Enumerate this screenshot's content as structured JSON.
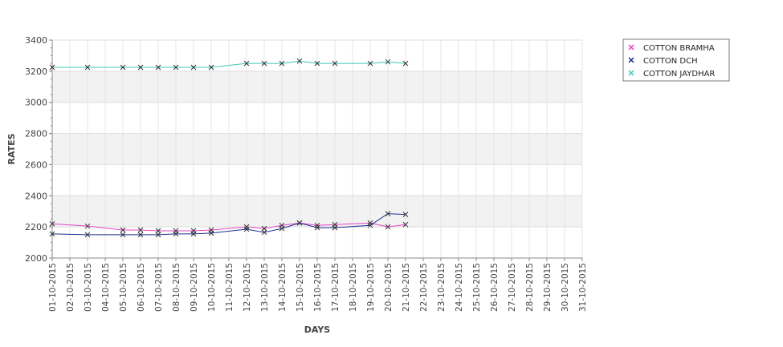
{
  "chart_data": {
    "type": "line",
    "title": "",
    "xlabel": "DAYS",
    "ylabel": "RATES",
    "ylim": [
      2000,
      3400
    ],
    "yticks": [
      "2000",
      "2200",
      "2400",
      "2600",
      "2800",
      "3000",
      "3200",
      "3400"
    ],
    "categories": [
      "01-10-2015",
      "02-10-2015",
      "03-10-2015",
      "04-10-2015",
      "05-10-2015",
      "06-10-2015",
      "07-10-2015",
      "08-10-2015",
      "09-10-2015",
      "10-10-2015",
      "11-10-2015",
      "12-10-2015",
      "13-10-2015",
      "14-10-2015",
      "15-10-2015",
      "16-10-2015",
      "17-10-2015",
      "18-10-2015",
      "19-10-2015",
      "20-10-2015",
      "21-10-2015",
      "22-10-2015",
      "23-10-2015",
      "24-10-2015",
      "25-10-2015",
      "26-10-2015",
      "27-10-2015",
      "28-10-2015",
      "29-10-2015",
      "30-10-2015",
      "31-10-2015"
    ],
    "grid": true,
    "legend_position": "top-right",
    "series": [
      {
        "name": "COTTON BRAMHA",
        "color": "#e642c8",
        "marker": "x",
        "points": [
          {
            "x": "01-10-2015",
            "y": 2220
          },
          {
            "x": "03-10-2015",
            "y": 2205
          },
          {
            "x": "05-10-2015",
            "y": 2180
          },
          {
            "x": "06-10-2015",
            "y": 2180
          },
          {
            "x": "07-10-2015",
            "y": 2175
          },
          {
            "x": "08-10-2015",
            "y": 2175
          },
          {
            "x": "09-10-2015",
            "y": 2175
          },
          {
            "x": "10-10-2015",
            "y": 2180
          },
          {
            "x": "12-10-2015",
            "y": 2200
          },
          {
            "x": "13-10-2015",
            "y": 2190
          },
          {
            "x": "14-10-2015",
            "y": 2210
          },
          {
            "x": "15-10-2015",
            "y": 2225
          },
          {
            "x": "16-10-2015",
            "y": 2210
          },
          {
            "x": "17-10-2015",
            "y": 2215
          },
          {
            "x": "19-10-2015",
            "y": 2225
          },
          {
            "x": "20-10-2015",
            "y": 2200
          },
          {
            "x": "21-10-2015",
            "y": 2215
          }
        ]
      },
      {
        "name": "COTTON DCH",
        "color": "#1c2f8f",
        "marker": "x",
        "points": [
          {
            "x": "01-10-2015",
            "y": 2155
          },
          {
            "x": "03-10-2015",
            "y": 2150
          },
          {
            "x": "05-10-2015",
            "y": 2150
          },
          {
            "x": "06-10-2015",
            "y": 2150
          },
          {
            "x": "07-10-2015",
            "y": 2150
          },
          {
            "x": "08-10-2015",
            "y": 2155
          },
          {
            "x": "09-10-2015",
            "y": 2155
          },
          {
            "x": "10-10-2015",
            "y": 2160
          },
          {
            "x": "12-10-2015",
            "y": 2185
          },
          {
            "x": "13-10-2015",
            "y": 2165
          },
          {
            "x": "14-10-2015",
            "y": 2190
          },
          {
            "x": "15-10-2015",
            "y": 2225
          },
          {
            "x": "16-10-2015",
            "y": 2195
          },
          {
            "x": "17-10-2015",
            "y": 2195
          },
          {
            "x": "19-10-2015",
            "y": 2210
          },
          {
            "x": "20-10-2015",
            "y": 2285
          },
          {
            "x": "21-10-2015",
            "y": 2280
          }
        ]
      },
      {
        "name": "COTTON JAYDHAR",
        "color": "#3fc9b4",
        "marker": "x",
        "points": [
          {
            "x": "01-10-2015",
            "y": 3225
          },
          {
            "x": "03-10-2015",
            "y": 3225
          },
          {
            "x": "05-10-2015",
            "y": 3225
          },
          {
            "x": "06-10-2015",
            "y": 3225
          },
          {
            "x": "07-10-2015",
            "y": 3225
          },
          {
            "x": "08-10-2015",
            "y": 3225
          },
          {
            "x": "09-10-2015",
            "y": 3225
          },
          {
            "x": "10-10-2015",
            "y": 3225
          },
          {
            "x": "12-10-2015",
            "y": 3250
          },
          {
            "x": "13-10-2015",
            "y": 3250
          },
          {
            "x": "14-10-2015",
            "y": 3250
          },
          {
            "x": "15-10-2015",
            "y": 3265
          },
          {
            "x": "16-10-2015",
            "y": 3250
          },
          {
            "x": "17-10-2015",
            "y": 3250
          },
          {
            "x": "19-10-2015",
            "y": 3250
          },
          {
            "x": "20-10-2015",
            "y": 3260
          },
          {
            "x": "21-10-2015",
            "y": 3250
          }
        ]
      }
    ]
  }
}
